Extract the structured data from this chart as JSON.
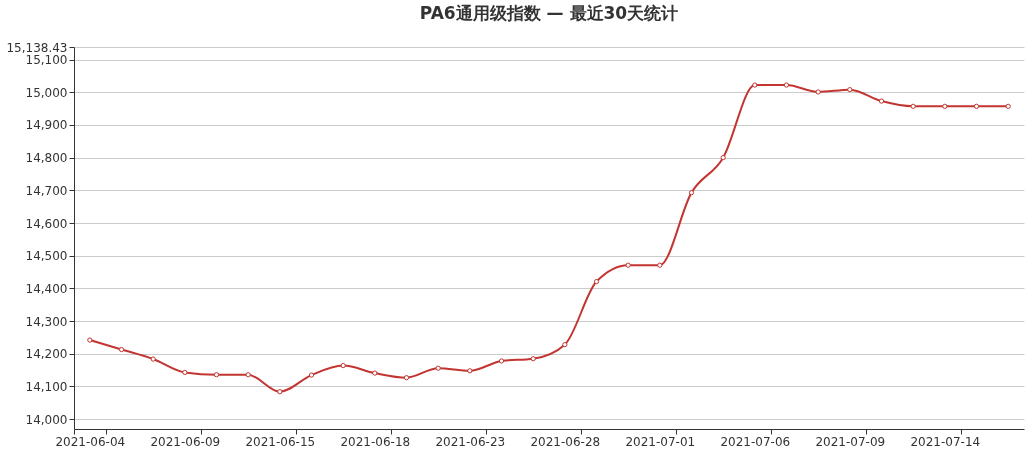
{
  "chart_data": {
    "type": "line",
    "title": "PA6通用级指数    —    最近30天统计",
    "categories": [
      "2021-06-04",
      null,
      null,
      "2021-06-09",
      null,
      null,
      "2021-06-15",
      null,
      null,
      "2021-06-18",
      null,
      null,
      "2021-06-23",
      null,
      null,
      "2021-06-28",
      null,
      null,
      "2021-07-01",
      null,
      null,
      "2021-07-06",
      null,
      null,
      "2021-07-09",
      null,
      null,
      "2021-07-14",
      null,
      null
    ],
    "series": [
      {
        "color": "#c23531",
        "values": [
          14242,
          14213,
          14184,
          14143,
          14136,
          14136,
          14084,
          14135,
          14164,
          14141,
          14127,
          14156,
          14148,
          14178,
          14185,
          14228,
          14421,
          14471,
          14471,
          14693,
          14800,
          15022,
          15022,
          15001,
          15008,
          14973,
          14957,
          14957,
          14957,
          14957
        ]
      }
    ],
    "ylim": [
      13970,
      15138.43
    ],
    "yticks": [
      {
        "value": 14000,
        "label": "14,000"
      },
      {
        "value": 14100,
        "label": "14,100"
      },
      {
        "value": 14200,
        "label": "14,200"
      },
      {
        "value": 14300,
        "label": "14,300"
      },
      {
        "value": 14400,
        "label": "14,400"
      },
      {
        "value": 14500,
        "label": "14,500"
      },
      {
        "value": 14600,
        "label": "14,600"
      },
      {
        "value": 14700,
        "label": "14,700"
      },
      {
        "value": 14800,
        "label": "14,800"
      },
      {
        "value": 14900,
        "label": "14,900"
      },
      {
        "value": 15000,
        "label": "15,000"
      },
      {
        "value": 15100,
        "label": "15,100"
      },
      {
        "value": 15138.43,
        "label": "15,138.43"
      }
    ],
    "grid": "y",
    "marker": "circle",
    "line_style": "solid"
  }
}
